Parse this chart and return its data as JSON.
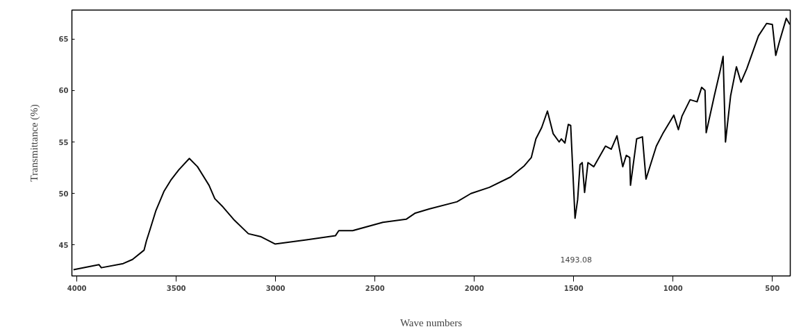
{
  "chart_data": {
    "type": "line",
    "xlabel": "Wave numbers",
    "ylabel": "Transmittance (%)",
    "x": [
      4017,
      3889,
      3877,
      3767,
      3720,
      3662,
      3650,
      3632,
      3603,
      3562,
      3527,
      3487,
      3434,
      3393,
      3335,
      3306,
      3265,
      3207,
      3137,
      3073,
      3003,
      2845,
      2699,
      2682,
      2612,
      2460,
      2343,
      2297,
      2227,
      2087,
      2017,
      1924,
      1818,
      1748,
      1713,
      1690,
      1661,
      1632,
      1603,
      1573,
      1562,
      1544,
      1527,
      1515,
      1493.08,
      1480,
      1468,
      1457,
      1445,
      1428,
      1399,
      1340,
      1311,
      1282,
      1253,
      1235,
      1218,
      1214,
      1183,
      1154,
      1136,
      1084,
      1049,
      996,
      973,
      955,
      914,
      879,
      856,
      839,
      833,
      792,
      763,
      748,
      736,
      710,
      681,
      658,
      629,
      570,
      529,
      500,
      483,
      465,
      430,
      412
    ],
    "series": [
      {
        "color": "#000000",
        "values": [
          42.6,
          43.1,
          42.8,
          43.2,
          43.6,
          44.5,
          45.4,
          46.5,
          48.3,
          50.2,
          51.3,
          52.3,
          53.4,
          52.6,
          50.8,
          49.5,
          48.7,
          47.4,
          46.1,
          45.8,
          45.1,
          45.5,
          45.9,
          46.4,
          46.4,
          47.2,
          47.5,
          48.1,
          48.5,
          49.2,
          50.0,
          50.6,
          51.6,
          52.7,
          53.5,
          55.3,
          56.4,
          58.0,
          55.8,
          55.0,
          55.3,
          54.9,
          56.7,
          56.6,
          47.6,
          49.4,
          52.8,
          53.0,
          50.1,
          53.0,
          52.6,
          54.6,
          54.3,
          55.6,
          52.6,
          53.7,
          53.5,
          50.8,
          55.3,
          55.5,
          51.4,
          54.6,
          55.9,
          57.6,
          56.2,
          57.5,
          59.1,
          58.9,
          60.3,
          60.0,
          55.9,
          59.5,
          61.9,
          63.3,
          55.0,
          59.5,
          62.3,
          60.8,
          62.1,
          65.3,
          66.5,
          66.4,
          63.4,
          64.7,
          67.0,
          66.4
        ]
      }
    ],
    "xlim": [
      4025,
      410
    ],
    "ylim": [
      42,
      67.8
    ],
    "xticks": [
      4000,
      3500,
      3000,
      2500,
      2000,
      1500,
      1000,
      500
    ],
    "yticks": [
      45,
      50,
      55,
      60,
      65
    ],
    "annotations": [
      "1493.08"
    ],
    "grid": false,
    "marker": "none",
    "line_style": "solid"
  }
}
